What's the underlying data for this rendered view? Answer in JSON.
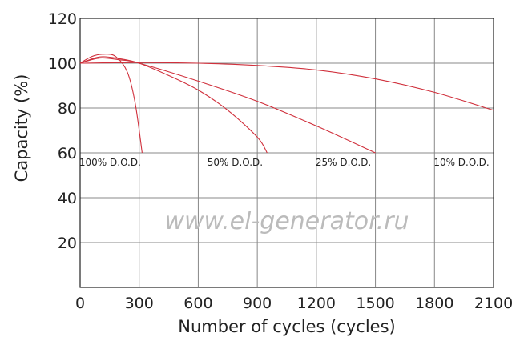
{
  "chart_data": {
    "type": "line",
    "title": "",
    "xlabel": "Number of cycles (cycles)",
    "ylabel": "Capacity (%)",
    "xlim": [
      0,
      2100
    ],
    "ylim": [
      0,
      120
    ],
    "xticks": [
      0,
      300,
      600,
      900,
      1200,
      1500,
      1800,
      2100
    ],
    "yticks": [
      20,
      40,
      60,
      80,
      100,
      120
    ],
    "grid": true,
    "line_color": "#d0303c",
    "watermark": "www.el-generator.ru",
    "series": [
      {
        "name": "100% D.O.D.",
        "x": [
          0,
          60,
          120,
          180,
          240,
          280,
          315
        ],
        "y": [
          100,
          103,
          104,
          103,
          96,
          82,
          60
        ]
      },
      {
        "name": "50% D.O.D.",
        "x": [
          0,
          100,
          200,
          300,
          450,
          600,
          750,
          900,
          950
        ],
        "y": [
          100,
          102.8,
          102,
          100,
          94.5,
          88,
          79,
          67,
          60
        ]
      },
      {
        "name": "25% D.O.D.",
        "x": [
          0,
          100,
          200,
          300,
          600,
          900,
          1200,
          1500
        ],
        "y": [
          100,
          102.3,
          101.5,
          100,
          92,
          83,
          72,
          60
        ]
      },
      {
        "name": "10% D.O.D.",
        "x": [
          0,
          300,
          600,
          900,
          1200,
          1500,
          1800,
          2100
        ],
        "y": [
          100,
          100.3,
          100,
          99,
          97,
          93,
          87,
          79
        ]
      }
    ]
  }
}
